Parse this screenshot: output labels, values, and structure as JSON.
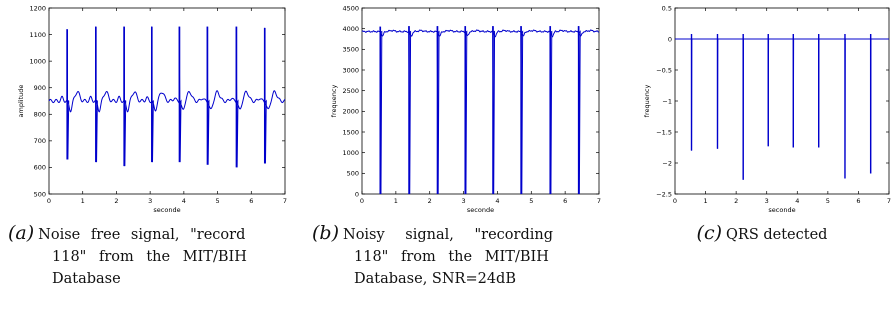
{
  "chart_data": [
    {
      "type": "line",
      "title": "",
      "xlabel": "seconde",
      "ylabel": "amplitude",
      "xlim": [
        0,
        7
      ],
      "ylim": [
        500,
        1200
      ],
      "xticks": [
        "0",
        "1",
        "2",
        "3",
        "4",
        "5",
        "6",
        "7"
      ],
      "yticks": [
        "500",
        "600",
        "700",
        "800",
        "900",
        "1000",
        "1100",
        "1200"
      ],
      "grid": false,
      "series_color": "#0000cc",
      "baseline": 850,
      "beats": [
        {
          "t": 0.54,
          "peak": 1120,
          "trough": 630
        },
        {
          "t": 1.39,
          "peak": 1130,
          "trough": 620
        },
        {
          "t": 2.23,
          "peak": 1130,
          "trough": 605
        },
        {
          "t": 3.05,
          "peak": 1130,
          "trough": 620
        },
        {
          "t": 3.87,
          "peak": 1130,
          "trough": 620
        },
        {
          "t": 4.7,
          "peak": 1130,
          "trough": 610
        },
        {
          "t": 5.56,
          "peak": 1130,
          "trough": 600
        },
        {
          "t": 6.4,
          "peak": 1125,
          "trough": 615
        }
      ]
    },
    {
      "type": "line",
      "title": "",
      "xlabel": "seconde",
      "ylabel": "frequency",
      "xlim": [
        0,
        7
      ],
      "ylim": [
        0,
        4500
      ],
      "xticks": [
        "0",
        "1",
        "2",
        "3",
        "4",
        "5",
        "6",
        "7"
      ],
      "yticks": [
        "0",
        "500",
        "1000",
        "1500",
        "2000",
        "2500",
        "3000",
        "3500",
        "4000",
        "4500"
      ],
      "grid": false,
      "series_color": "#0000cc",
      "baseline": 3930,
      "beats": [
        {
          "t": 0.54,
          "peak": 4050,
          "trough": 0
        },
        {
          "t": 1.39,
          "peak": 4060,
          "trough": 0
        },
        {
          "t": 2.23,
          "peak": 4060,
          "trough": 0
        },
        {
          "t": 3.05,
          "peak": 4060,
          "trough": 0
        },
        {
          "t": 3.87,
          "peak": 4060,
          "trough": 0
        },
        {
          "t": 4.7,
          "peak": 4060,
          "trough": 0
        },
        {
          "t": 5.56,
          "peak": 4060,
          "trough": 0
        },
        {
          "t": 6.4,
          "peak": 4060,
          "trough": 0
        }
      ]
    },
    {
      "type": "line",
      "title": "",
      "xlabel": "seconde",
      "ylabel": "frequency",
      "xlim": [
        0,
        7
      ],
      "ylim": [
        -2.5,
        0.5
      ],
      "xticks": [
        "0",
        "1",
        "2",
        "3",
        "4",
        "5",
        "6",
        "7"
      ],
      "yticks": [
        "−2.5",
        "−2",
        "−1.5",
        "−1",
        "−0.5",
        "0",
        "0.5"
      ],
      "grid": false,
      "series_color": "#0000cc",
      "baseline": 0,
      "beats": [
        {
          "t": 0.54,
          "peak": 0.08,
          "trough": -1.8
        },
        {
          "t": 1.39,
          "peak": 0.08,
          "trough": -1.77
        },
        {
          "t": 2.23,
          "peak": 0.08,
          "trough": -2.27
        },
        {
          "t": 3.05,
          "peak": 0.08,
          "trough": -1.73
        },
        {
          "t": 3.87,
          "peak": 0.08,
          "trough": -1.75
        },
        {
          "t": 4.7,
          "peak": 0.08,
          "trough": -1.75
        },
        {
          "t": 5.56,
          "peak": 0.08,
          "trough": -2.25
        },
        {
          "t": 6.4,
          "peak": 0.08,
          "trough": -2.17
        }
      ]
    }
  ],
  "captions": {
    "a": {
      "tag": "(a)",
      "line1": "Noise free signal, \"record",
      "line2": "118\" from the MIT/BIH",
      "line3": "Database"
    },
    "b": {
      "tag": "(b)",
      "line1": "Noisy signal, \"recording",
      "line2": "118\" from the MIT/BIH",
      "line3": "Database, SNR=24dB"
    },
    "c": {
      "tag": "(c)",
      "line1": "QRS detected"
    }
  }
}
